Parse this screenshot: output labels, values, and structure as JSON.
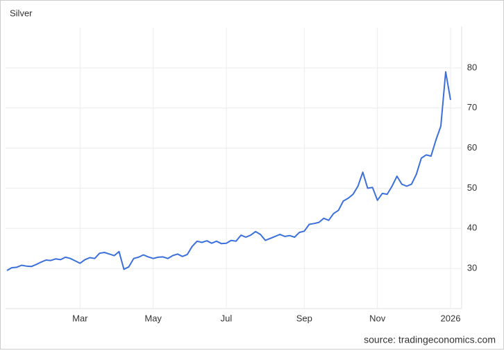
{
  "chart_data": {
    "type": "line",
    "title": "Silver",
    "source": "source: tradingeconomics.com",
    "categories": [
      null,
      null,
      null,
      null,
      null,
      null,
      null,
      null,
      null,
      null,
      null,
      null,
      null,
      null,
      null,
      "Mar",
      null,
      null,
      null,
      null,
      null,
      null,
      null,
      null,
      null,
      null,
      null,
      null,
      null,
      null,
      "May",
      null,
      null,
      null,
      null,
      null,
      null,
      null,
      null,
      null,
      null,
      null,
      null,
      null,
      null,
      "Jul",
      null,
      null,
      null,
      null,
      null,
      null,
      null,
      null,
      null,
      null,
      null,
      null,
      null,
      null,
      null,
      "Sep",
      null,
      null,
      null,
      null,
      null,
      null,
      null,
      null,
      null,
      null,
      null,
      null,
      null,
      null,
      "Nov",
      null,
      null,
      null,
      null,
      null,
      null,
      null,
      null,
      null,
      null,
      null,
      null,
      null,
      null,
      "2026"
    ],
    "series": [
      {
        "name": "Silver",
        "color": "#3a6fdc",
        "values": [
          29.5,
          30.2,
          30.3,
          30.8,
          30.6,
          30.5,
          31.0,
          31.6,
          32.1,
          32.0,
          32.4,
          32.2,
          32.8,
          32.5,
          31.9,
          31.3,
          32.2,
          32.7,
          32.5,
          33.8,
          34.0,
          33.6,
          33.2,
          34.2,
          29.8,
          30.4,
          32.5,
          32.8,
          33.4,
          32.9,
          32.5,
          32.8,
          32.9,
          32.5,
          33.2,
          33.6,
          33.0,
          33.5,
          35.5,
          36.8,
          36.5,
          36.9,
          36.3,
          36.8,
          36.2,
          36.3,
          37.0,
          36.8,
          38.3,
          37.8,
          38.3,
          39.2,
          38.5,
          37.0,
          37.5,
          38.0,
          38.5,
          38.0,
          38.2,
          37.8,
          39.0,
          39.3,
          41.0,
          41.2,
          41.5,
          42.5,
          42.0,
          43.7,
          44.5,
          46.8,
          47.5,
          48.5,
          50.5,
          54.0,
          50.0,
          50.2,
          47.0,
          48.7,
          48.5,
          50.5,
          53.0,
          51.0,
          50.5,
          51.0,
          53.5,
          57.5,
          58.3,
          58.0,
          62.0,
          65.5,
          79.0,
          72.0
        ]
      }
    ],
    "ylim": [
      20,
      90
    ],
    "yticks": [
      30,
      40,
      50,
      60,
      70,
      80
    ],
    "grid": true
  }
}
